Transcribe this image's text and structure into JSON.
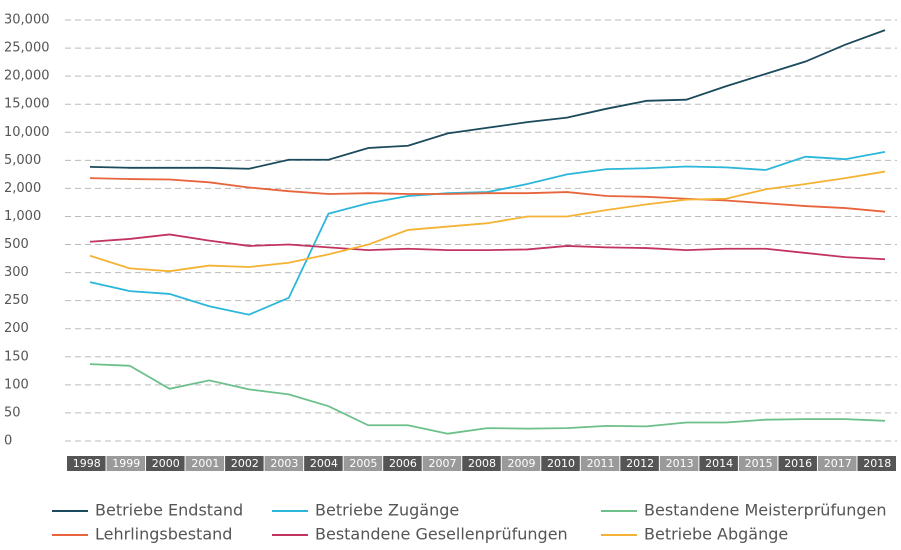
{
  "chart_data": {
    "type": "line",
    "categories": [
      "1998",
      "1999",
      "2000",
      "2001",
      "2002",
      "2003",
      "2004",
      "2005",
      "2006",
      "2007",
      "2008",
      "2009",
      "2010",
      "2011",
      "2012",
      "2013",
      "2014",
      "2015",
      "2016",
      "2017",
      "2018"
    ],
    "ylim": [
      0,
      30000
    ],
    "yticks": [
      0,
      50,
      100,
      150,
      200,
      250,
      300,
      500,
      {
        "value": 1000,
        "label": "1,000"
      },
      {
        "value": 2000,
        "label": "2,000"
      },
      {
        "value": 5000,
        "label": "5,000"
      },
      {
        "value": 10000,
        "label": "10,000"
      },
      {
        "value": 15000,
        "label": "15,000"
      },
      {
        "value": 20000,
        "label": "20,000"
      },
      {
        "value": 25000,
        "label": "25,000"
      },
      {
        "value": 30000,
        "label": "30,000"
      }
    ],
    "grid": true,
    "series": [
      {
        "name": "Betriebe Endstand",
        "color": "#1b4a5c",
        "values": [
          4300,
          4200,
          4200,
          4200,
          4100,
          5100,
          5100,
          7200,
          7600,
          9800,
          10800,
          11800,
          12600,
          14200,
          15600,
          15800,
          18200,
          20400,
          22600,
          25600,
          28200
        ]
      },
      {
        "name": "Betriebe Zugänge",
        "color": "#2bb7da",
        "values": [
          283,
          267,
          262,
          240,
          225,
          255,
          1100,
          1470,
          1730,
          1830,
          1870,
          2470,
          3500,
          4060,
          4150,
          4340,
          4250,
          3970,
          5650,
          5200,
          6500
        ]
      },
      {
        "name": "Bestandene Meisterprüfungen",
        "color": "#6cc08a",
        "values": [
          137,
          134,
          93,
          108,
          92,
          83,
          62,
          28,
          28,
          13,
          23,
          22,
          23,
          27,
          26,
          33,
          33,
          38,
          39,
          39,
          36
        ]
      },
      {
        "name": "Lehrlingsbestand",
        "color": "#e8643c",
        "values": [
          3100,
          3000,
          2950,
          2650,
          2100,
          1900,
          1800,
          1830,
          1800,
          1800,
          1830,
          1830,
          1870,
          1730,
          1700,
          1630,
          1570,
          1470,
          1370,
          1300,
          1170
        ]
      },
      {
        "name": "Bestandene Gesellenprüfungen",
        "color": "#c2345f",
        "values": [
          550,
          600,
          680,
          570,
          490,
          500,
          480,
          460,
          470,
          460,
          460,
          465,
          490,
          480,
          475,
          460,
          470,
          470,
          440,
          410,
          395
        ]
      },
      {
        "name": "Betriebe Abgänge",
        "color": "#f5b335",
        "values": [
          420,
          330,
          310,
          350,
          340,
          370,
          430,
          500,
          760,
          820,
          880,
          1000,
          1000,
          1230,
          1430,
          1600,
          1630,
          1970,
          2470,
          3100,
          3800
        ]
      }
    ]
  }
}
